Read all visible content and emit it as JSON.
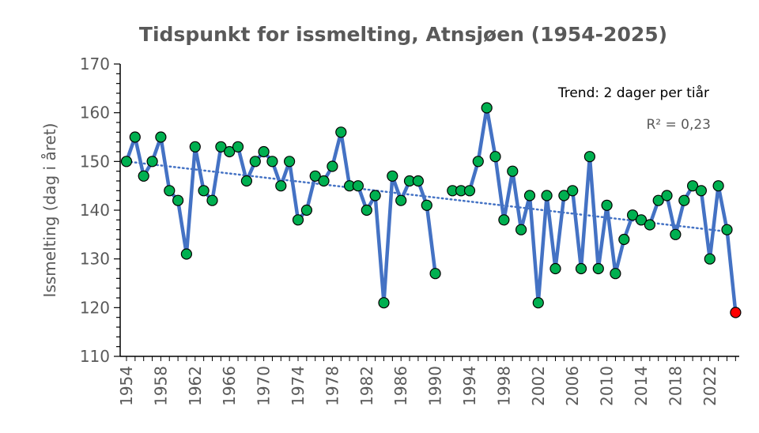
{
  "chart_data": {
    "type": "line",
    "title": "Tidspunkt for issmelting, Atnsjøen (1954-2025)",
    "xlabel": "",
    "ylabel": "Issmelting (dag i året)",
    "ylim": [
      110,
      170
    ],
    "yticks": [
      110,
      120,
      130,
      140,
      150,
      160,
      170
    ],
    "xlim": [
      1954,
      2025
    ],
    "xticks": [
      1954,
      1958,
      1962,
      1966,
      1970,
      1974,
      1978,
      1982,
      1986,
      1990,
      1994,
      1998,
      2002,
      2006,
      2010,
      2014,
      2018,
      2022
    ],
    "grid": false,
    "legend": "none",
    "annotations": {
      "trend": "Trend: 2 dager per tiår",
      "r2": "R² = 0,23"
    },
    "colors": {
      "line": "#4472C4",
      "marker": "#00B050",
      "marker_edge": "#000000",
      "last_marker": "#FF0000",
      "trendline": "#4472C4",
      "axis": "#000000",
      "text": "#595959"
    },
    "series": [
      {
        "x": [
          1954,
          1955,
          1956,
          1957,
          1958,
          1959,
          1960,
          1961,
          1962,
          1963,
          1964,
          1965,
          1966,
          1967,
          1968,
          1969,
          1970,
          1971,
          1972,
          1973,
          1974,
          1975,
          1976,
          1977,
          1978,
          1979,
          1980,
          1981,
          1982,
          1983,
          1984,
          1985,
          1986,
          1987,
          1988,
          1989,
          1990,
          1991,
          1992,
          1993,
          1994,
          1995,
          1996,
          1997,
          1998,
          1999,
          2000,
          2001,
          2002,
          2003,
          2004,
          2005,
          2006,
          2007,
          2008,
          2009,
          2010,
          2011,
          2012,
          2013,
          2014,
          2015,
          2016,
          2017,
          2018,
          2019,
          2020,
          2021,
          2022,
          2023,
          2024,
          2025
        ],
        "values": [
          150,
          155,
          147,
          150,
          155,
          144,
          142,
          131,
          153,
          144,
          142,
          153,
          152,
          153,
          146,
          150,
          152,
          150,
          145,
          150,
          138,
          140,
          147,
          146,
          149,
          156,
          145,
          145,
          140,
          143,
          121,
          147,
          142,
          146,
          146,
          141,
          127,
          null,
          144,
          144,
          144,
          150,
          161,
          151,
          138,
          148,
          136,
          143,
          121,
          143,
          128,
          143,
          144,
          128,
          151,
          128,
          141,
          127,
          134,
          139,
          138,
          137,
          142,
          143,
          135,
          142,
          145,
          144,
          130,
          145,
          136,
          119
        ]
      }
    ],
    "trendline": {
      "type": "linear",
      "x": [
        1954,
        2024
      ],
      "y": [
        150.0,
        135.6
      ]
    }
  }
}
